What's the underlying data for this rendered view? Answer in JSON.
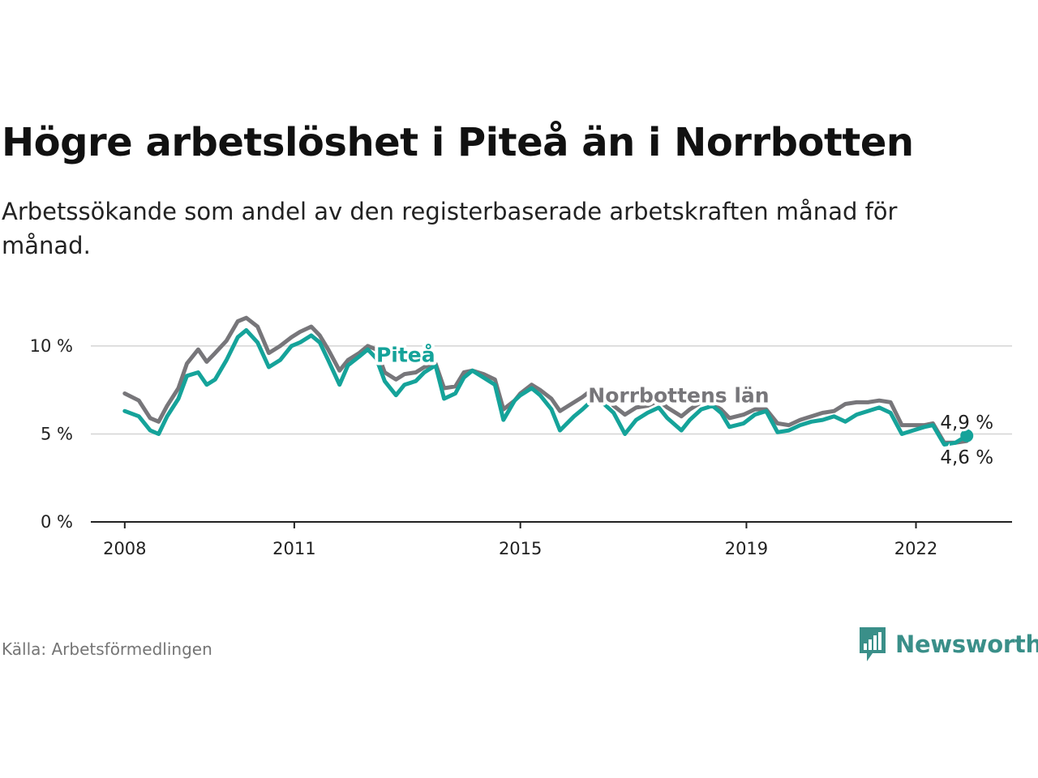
{
  "title": "Högre arbetslöshet i Piteå än i Norrbotten",
  "subtitle": "Arbetssökande som andel av den registerbaserade arbetskraften månad för månad.",
  "source": "Källa: Arbetsförmedlingen",
  "brand": "Newsworthy",
  "colors": {
    "pitea": "#15a39a",
    "norrbotten": "#77767a",
    "grid": "#d4d4d4",
    "axis": "#222222",
    "brand": "#3a8f89"
  },
  "chart_data": {
    "type": "line",
    "title": "Högre arbetslöshet i Piteå än i Norrbotten",
    "xlabel": "",
    "ylabel": "",
    "ylim": [
      0,
      11.7
    ],
    "yticks": [
      0,
      5,
      10
    ],
    "ytick_labels": [
      "0 %",
      "5 %",
      "10 %"
    ],
    "xlim": [
      2007.4,
      2023.7
    ],
    "xticks": [
      2008,
      2011,
      2015,
      2019,
      2022
    ],
    "xtick_labels": [
      "2008",
      "2011",
      "2015",
      "2019",
      "2022"
    ],
    "grid": true,
    "x": [
      2008,
      2008.25,
      2008.45,
      2008.6,
      2008.75,
      2008.95,
      2009.1,
      2009.3,
      2009.45,
      2009.6,
      2009.8,
      2010,
      2010.15,
      2010.35,
      2010.55,
      2010.75,
      2010.95,
      2011.1,
      2011.3,
      2011.45,
      2011.6,
      2011.8,
      2011.95,
      2012.15,
      2012.3,
      2012.45,
      2012.6,
      2012.8,
      2012.95,
      2013.15,
      2013.3,
      2013.5,
      2013.65,
      2013.85,
      2014,
      2014.15,
      2014.35,
      2014.55,
      2014.7,
      2014.9,
      2015,
      2015.2,
      2015.35,
      2015.55,
      2015.7,
      2015.95,
      2016.1,
      2016.3,
      2016.45,
      2016.65,
      2016.85,
      2017.05,
      2017.25,
      2017.45,
      2017.6,
      2017.85,
      2018,
      2018.2,
      2018.4,
      2018.55,
      2018.7,
      2018.95,
      2019.15,
      2019.35,
      2019.55,
      2019.75,
      2019.95,
      2020.15,
      2020.35,
      2020.55,
      2020.75,
      2020.95,
      2021.15,
      2021.35,
      2021.55,
      2021.75,
      2021.95,
      2022.15,
      2022.3,
      2022.5,
      2022.7,
      2022.9
    ],
    "series": [
      {
        "name": "Piteå",
        "label": "Piteå",
        "end_label": "4,9 %",
        "values": [
          6.3,
          6.0,
          5.2,
          5.0,
          6.0,
          7.0,
          8.3,
          8.5,
          7.8,
          8.1,
          9.2,
          10.5,
          10.9,
          10.2,
          8.8,
          9.2,
          10.0,
          10.2,
          10.6,
          10.2,
          9.2,
          7.8,
          8.9,
          9.4,
          9.8,
          9.3,
          8.0,
          7.2,
          7.8,
          8.0,
          8.5,
          8.9,
          7.0,
          7.3,
          8.2,
          8.6,
          8.2,
          7.8,
          5.8,
          6.9,
          7.2,
          7.6,
          7.2,
          6.4,
          5.2,
          6.0,
          6.4,
          7.0,
          6.8,
          6.2,
          5.0,
          5.8,
          6.2,
          6.5,
          5.9,
          5.2,
          5.8,
          6.4,
          6.6,
          6.2,
          5.4,
          5.6,
          6.1,
          6.3,
          5.1,
          5.2,
          5.5,
          5.7,
          5.8,
          6.0,
          5.7,
          6.1,
          6.3,
          6.5,
          6.2,
          5.0,
          5.2,
          5.4,
          5.5,
          4.4,
          4.5,
          4.9
        ]
      },
      {
        "name": "Norrbottens län",
        "label": "Norrbottens län",
        "end_label": "4,6 %",
        "values": [
          7.3,
          6.9,
          5.9,
          5.7,
          6.6,
          7.6,
          9.0,
          9.8,
          9.1,
          9.6,
          10.3,
          11.4,
          11.6,
          11.1,
          9.6,
          10.0,
          10.5,
          10.8,
          11.1,
          10.6,
          9.8,
          8.6,
          9.2,
          9.6,
          10.0,
          9.8,
          8.5,
          8.1,
          8.4,
          8.5,
          8.8,
          9.0,
          7.6,
          7.7,
          8.5,
          8.6,
          8.4,
          8.1,
          6.4,
          6.9,
          7.3,
          7.8,
          7.5,
          7.0,
          6.3,
          6.8,
          7.1,
          7.6,
          7.3,
          6.6,
          6.1,
          6.5,
          6.6,
          6.9,
          6.5,
          6.0,
          6.4,
          6.8,
          6.7,
          6.4,
          5.9,
          6.1,
          6.4,
          6.4,
          5.6,
          5.5,
          5.8,
          6.0,
          6.2,
          6.3,
          6.7,
          6.8,
          6.8,
          6.9,
          6.8,
          5.5,
          5.5,
          5.5,
          5.6,
          4.5,
          4.5,
          4.6
        ]
      }
    ]
  }
}
